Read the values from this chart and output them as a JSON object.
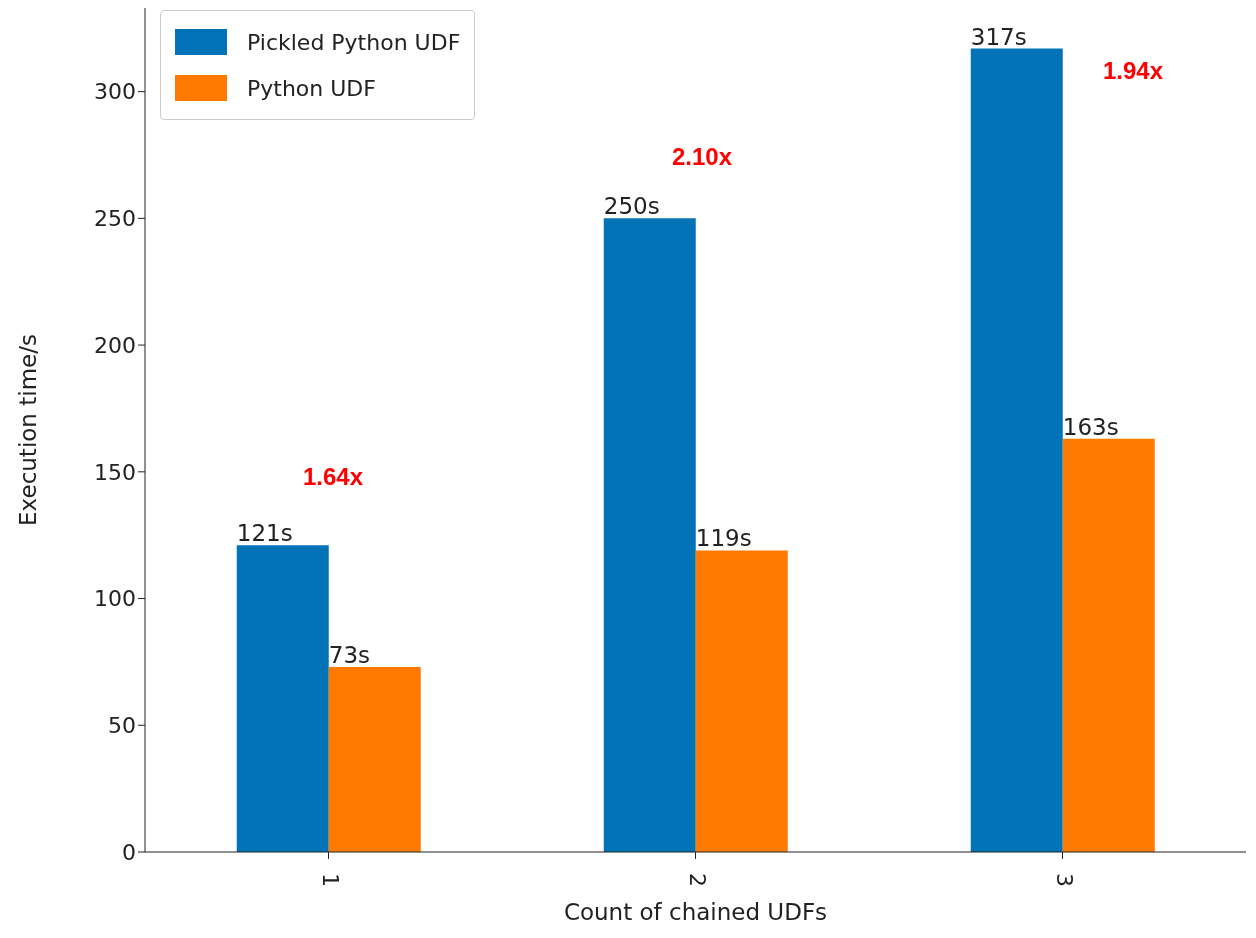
{
  "chart_data": {
    "type": "bar",
    "xlabel": "Count of chained UDFs",
    "ylabel": "Execution time/s",
    "categories": [
      "1",
      "2",
      "3"
    ],
    "series": [
      {
        "name": "Pickled Python UDF",
        "color": "#0173b6",
        "values": [
          121,
          250,
          317
        ],
        "value_labels": [
          "121s",
          "250s",
          "317s"
        ]
      },
      {
        "name": "Python UDF",
        "color": "#fe7a00",
        "values": [
          73,
          119,
          163
        ],
        "value_labels": [
          "73s",
          "119s",
          "163s"
        ]
      }
    ],
    "ylim": [
      0,
      333
    ],
    "yticks": [
      0,
      50,
      100,
      150,
      200,
      250,
      300
    ],
    "legend": "top left",
    "annotations": [
      "1.64x",
      "2.10x",
      "1.94x"
    ]
  }
}
